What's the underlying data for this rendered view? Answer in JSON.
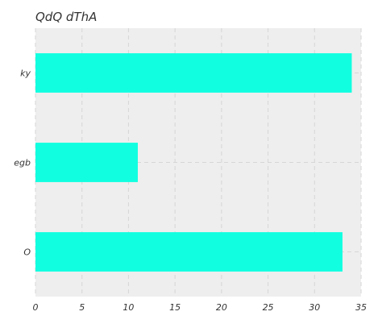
{
  "chart_data": {
    "type": "bar",
    "orientation": "horizontal",
    "title": "QdQ dThA",
    "xlabel": "",
    "ylabel": "",
    "categories": [
      "ky",
      "egb",
      "O"
    ],
    "values": [
      34,
      11,
      33
    ],
    "xlim": [
      0,
      35
    ],
    "xticks": [
      0,
      5,
      10,
      15,
      20,
      25,
      30,
      35
    ],
    "grid": true,
    "legend": "none",
    "colors": {
      "bar": "#11ffe0",
      "plot_background": "#eeeeee",
      "grid": "#d6d6d6",
      "text": "#333333"
    }
  }
}
